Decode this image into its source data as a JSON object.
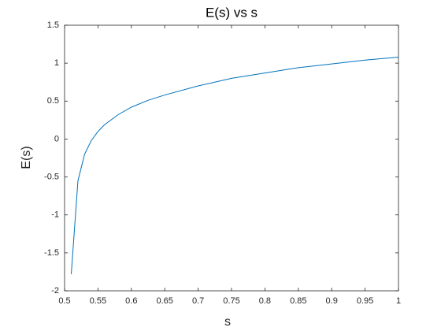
{
  "chart_data": {
    "type": "line",
    "title": "E(s) vs s",
    "x_label": "s",
    "y_label": "E(s)",
    "series": [
      {
        "name": "E(s)",
        "color": "#0072BD",
        "x": [
          0.51,
          0.52,
          0.53,
          0.54,
          0.55,
          0.56,
          0.58,
          0.6,
          0.625,
          0.65,
          0.7,
          0.75,
          0.8,
          0.85,
          0.9,
          0.95,
          1.0
        ],
        "values": [
          -1.78,
          -0.55,
          -0.2,
          -0.02,
          0.1,
          0.19,
          0.32,
          0.42,
          0.51,
          0.58,
          0.7,
          0.8,
          0.87,
          0.94,
          0.99,
          1.04,
          1.08
        ]
      }
    ],
    "xlim": [
      0.5,
      1
    ],
    "xticks": [
      0.5,
      0.55,
      0.6,
      0.65,
      0.7,
      0.75,
      0.8,
      0.85,
      0.9,
      0.95,
      1
    ],
    "ylim": [
      -2,
      1.5
    ],
    "yticks": [
      -2,
      -1.5,
      -1,
      -0.5,
      0,
      0.5,
      1,
      1.5
    ],
    "grid": false
  }
}
